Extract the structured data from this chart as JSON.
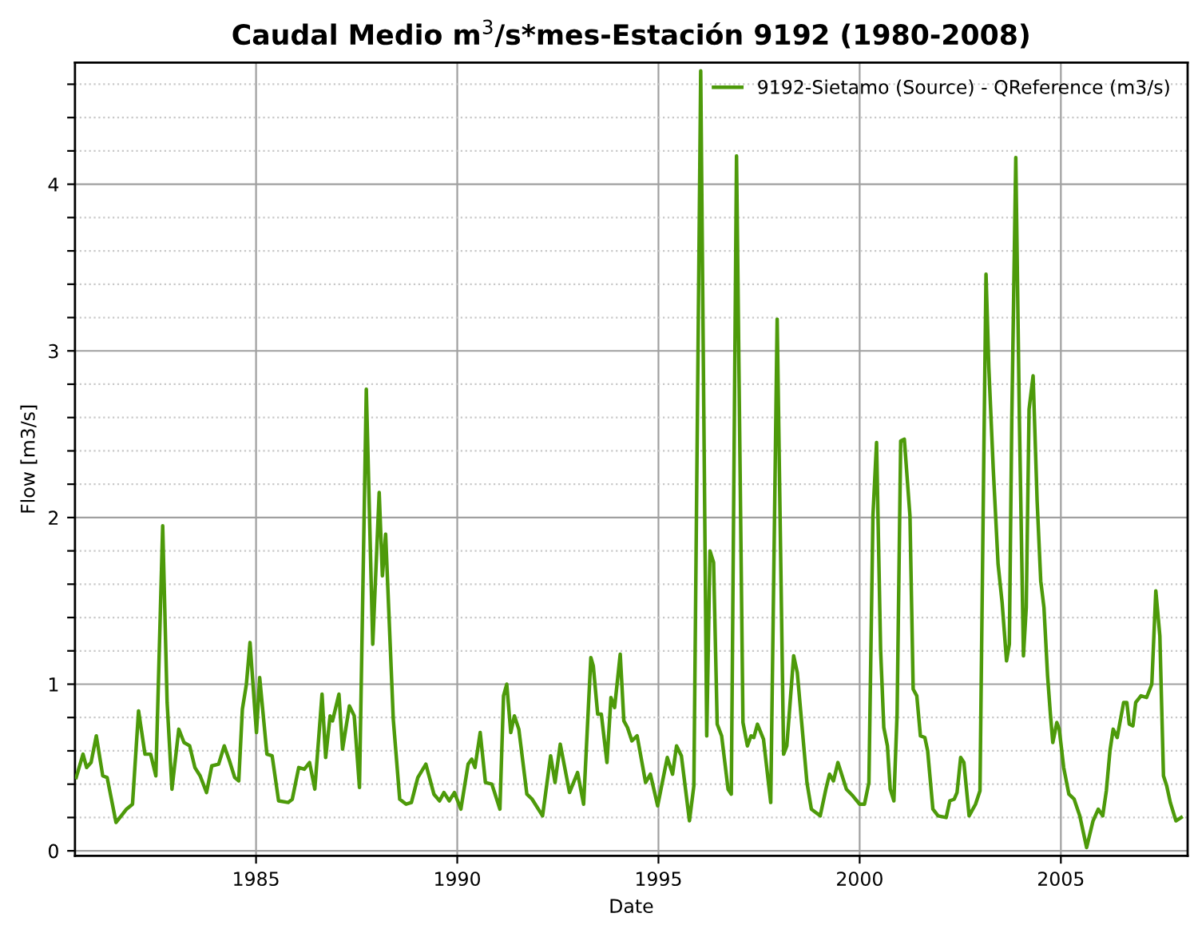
{
  "chart_data": {
    "type": "line",
    "title": "Caudal Medio m$^{3}$/s*mes-Estación 9192 (1980-2008)",
    "xlabel": "Date",
    "ylabel": "Flow [m3/s]",
    "xlim": [
      1980.5,
      2008.15
    ],
    "xticks": [
      1985,
      1990,
      1995,
      2000,
      2005
    ],
    "ylim": [
      -0.03,
      4.73
    ],
    "yticks": [
      0,
      {
        "value": 0.2,
        "label": null
      },
      {
        "value": 0.4,
        "label": null
      },
      {
        "value": 0.6,
        "label": null
      },
      {
        "value": 0.8,
        "label": null
      },
      1,
      {
        "value": 1.2,
        "label": null
      },
      {
        "value": 1.4,
        "label": null
      },
      {
        "value": 1.6,
        "label": null
      },
      {
        "value": 1.8,
        "label": null
      },
      2,
      {
        "value": 2.2,
        "label": null
      },
      {
        "value": 2.4,
        "label": null
      },
      {
        "value": 2.6,
        "label": null
      },
      {
        "value": 2.8,
        "label": null
      },
      3,
      {
        "value": 3.2,
        "label": null
      },
      {
        "value": 3.4,
        "label": null
      },
      {
        "value": 3.6,
        "label": null
      },
      {
        "value": 3.8,
        "label": null
      },
      4,
      {
        "value": 4.2,
        "label": null
      },
      {
        "value": 4.4,
        "label": null
      },
      {
        "value": 4.6,
        "label": null
      }
    ],
    "grid": true,
    "legend": "top right",
    "marker": "none",
    "line_style": "solid",
    "series": [
      {
        "name": "9192-Sietamo (Source) - QReference (m3/s)",
        "color": "#4d9a0a",
        "x": [
          1980.53,
          1980.7,
          1980.79,
          1980.9,
          1981.03,
          1981.19,
          1981.3,
          1981.52,
          1981.78,
          1981.93,
          1982.08,
          1982.24,
          1982.38,
          1982.51,
          1982.68,
          1982.79,
          1982.91,
          1983.08,
          1983.21,
          1983.35,
          1983.48,
          1983.61,
          1983.77,
          1983.9,
          1984.07,
          1984.21,
          1984.34,
          1984.47,
          1984.57,
          1984.66,
          1984.76,
          1984.85,
          1985.01,
          1985.09,
          1985.27,
          1985.4,
          1985.56,
          1985.8,
          1985.9,
          1986.06,
          1986.2,
          1986.33,
          1986.46,
          1986.64,
          1986.73,
          1986.84,
          1986.9,
          1987.06,
          1987.15,
          1987.32,
          1987.44,
          1987.57,
          1987.74,
          1987.9,
          1988.06,
          1988.14,
          1988.22,
          1988.41,
          1988.57,
          1988.73,
          1988.86,
          1989.02,
          1989.22,
          1989.42,
          1989.56,
          1989.67,
          1989.8,
          1989.93,
          1990.09,
          1990.27,
          1990.36,
          1990.44,
          1990.57,
          1990.7,
          1990.86,
          1991.06,
          1991.15,
          1991.23,
          1991.33,
          1991.42,
          1991.53,
          1991.73,
          1991.86,
          1992.12,
          1992.32,
          1992.43,
          1992.56,
          1992.79,
          1992.99,
          1993.14,
          1993.32,
          1993.38,
          1993.49,
          1993.58,
          1993.72,
          1993.82,
          1993.91,
          1994.05,
          1994.14,
          1994.23,
          1994.34,
          1994.47,
          1994.68,
          1994.8,
          1994.98,
          1995.22,
          1995.35,
          1995.45,
          1995.57,
          1995.77,
          1995.88,
          1996.05,
          1996.2,
          1996.28,
          1996.37,
          1996.46,
          1996.57,
          1996.73,
          1996.81,
          1996.94,
          1997.1,
          1997.21,
          1997.3,
          1997.37,
          1997.46,
          1997.61,
          1997.79,
          1997.95,
          1998.11,
          1998.19,
          1998.36,
          1998.45,
          1998.69,
          1998.8,
          1999.02,
          1999.16,
          1999.25,
          1999.35,
          1999.46,
          1999.67,
          1999.83,
          2000.0,
          2000.12,
          2000.23,
          2000.33,
          2000.42,
          2000.52,
          2000.6,
          2000.69,
          2000.76,
          2000.85,
          2000.93,
          2001.02,
          2001.11,
          2001.25,
          2001.33,
          2001.42,
          2001.51,
          2001.62,
          2001.69,
          2001.82,
          2001.95,
          2002.15,
          2002.24,
          2002.35,
          2002.42,
          2002.51,
          2002.59,
          2002.72,
          2002.88,
          2002.99,
          2003.08,
          2003.14,
          2003.21,
          2003.32,
          2003.44,
          2003.54,
          2003.65,
          2003.72,
          2003.78,
          2003.88,
          2003.97,
          2004.07,
          2004.14,
          2004.21,
          2004.31,
          2004.41,
          2004.5,
          2004.58,
          2004.67,
          2004.74,
          2004.8,
          2004.9,
          2004.96,
          2005.07,
          2005.2,
          2005.33,
          2005.47,
          2005.64,
          2005.8,
          2005.93,
          2006.04,
          2006.13,
          2006.22,
          2006.3,
          2006.4,
          2006.46,
          2006.56,
          2006.64,
          2006.7,
          2006.79,
          2006.86,
          2006.99,
          2007.13,
          2007.26,
          2007.36,
          2007.46,
          2007.55,
          2007.63,
          2007.72,
          2007.86,
          2007.99
        ],
        "values": [
          0.44,
          0.58,
          0.5,
          0.53,
          0.69,
          0.45,
          0.44,
          0.17,
          0.25,
          0.28,
          0.84,
          0.58,
          0.58,
          0.45,
          1.95,
          0.89,
          0.37,
          0.73,
          0.65,
          0.63,
          0.5,
          0.45,
          0.35,
          0.51,
          0.52,
          0.63,
          0.54,
          0.44,
          0.42,
          0.85,
          1.0,
          1.25,
          0.71,
          1.04,
          0.58,
          0.57,
          0.3,
          0.29,
          0.31,
          0.5,
          0.49,
          0.53,
          0.37,
          0.94,
          0.56,
          0.81,
          0.78,
          0.94,
          0.61,
          0.87,
          0.81,
          0.38,
          2.77,
          1.24,
          2.15,
          1.65,
          1.9,
          0.79,
          0.31,
          0.28,
          0.29,
          0.44,
          0.52,
          0.34,
          0.3,
          0.35,
          0.3,
          0.35,
          0.25,
          0.52,
          0.55,
          0.5,
          0.71,
          0.41,
          0.4,
          0.25,
          0.93,
          1.0,
          0.71,
          0.81,
          0.73,
          0.34,
          0.31,
          0.21,
          0.57,
          0.41,
          0.64,
          0.35,
          0.47,
          0.28,
          1.16,
          1.11,
          0.82,
          0.82,
          0.53,
          0.92,
          0.86,
          1.18,
          0.78,
          0.74,
          0.66,
          0.69,
          0.41,
          0.46,
          0.27,
          0.56,
          0.46,
          0.63,
          0.57,
          0.18,
          0.39,
          4.68,
          0.69,
          1.8,
          1.73,
          0.76,
          0.69,
          0.37,
          0.34,
          4.17,
          0.77,
          0.63,
          0.69,
          0.68,
          0.76,
          0.67,
          0.29,
          3.19,
          0.58,
          0.63,
          1.17,
          1.07,
          0.41,
          0.25,
          0.21,
          0.37,
          0.46,
          0.42,
          0.53,
          0.37,
          0.33,
          0.28,
          0.28,
          0.41,
          2.01,
          2.45,
          1.21,
          0.74,
          0.63,
          0.37,
          0.3,
          0.82,
          2.46,
          2.47,
          2.01,
          0.97,
          0.93,
          0.69,
          0.68,
          0.6,
          0.25,
          0.21,
          0.2,
          0.3,
          0.31,
          0.35,
          0.56,
          0.53,
          0.21,
          0.28,
          0.36,
          2.26,
          3.46,
          2.9,
          2.29,
          1.72,
          1.49,
          1.14,
          1.24,
          2.58,
          4.16,
          2.58,
          1.17,
          1.46,
          2.65,
          2.85,
          2.1,
          1.62,
          1.46,
          1.05,
          0.82,
          0.65,
          0.77,
          0.73,
          0.5,
          0.34,
          0.31,
          0.21,
          0.02,
          0.18,
          0.25,
          0.21,
          0.36,
          0.6,
          0.73,
          0.68,
          0.76,
          0.89,
          0.89,
          0.76,
          0.75,
          0.89,
          0.93,
          0.92,
          1.0,
          1.56,
          1.29,
          0.45,
          0.39,
          0.29,
          0.18,
          0.2
        ]
      }
    ]
  }
}
